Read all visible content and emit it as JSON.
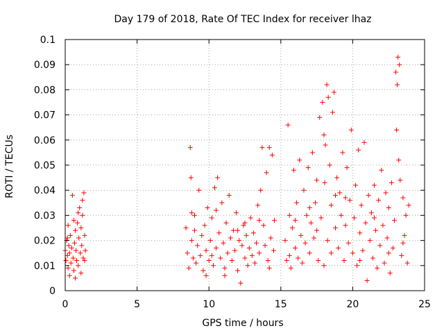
{
  "chart_data": {
    "type": "scatter",
    "title": "Day 179 of 2018, Rate Of TEC Index for receiver lhaz",
    "xlabel": "GPS time / hours",
    "ylabel": "ROTI / TECUs",
    "xlim": [
      0,
      25
    ],
    "ylim": [
      0,
      0.1
    ],
    "x_ticks": [
      0,
      5,
      10,
      15,
      20,
      25
    ],
    "x_tick_labels": [
      "0",
      "5",
      "10",
      "15",
      "20",
      "25"
    ],
    "y_ticks": [
      0,
      0.01,
      0.02,
      0.03,
      0.04,
      0.05,
      0.06,
      0.07,
      0.08,
      0.09,
      0.1
    ],
    "y_tick_labels": [
      "0",
      "0.01",
      "0.02",
      "0.03",
      "0.04",
      "0.05",
      "0.06",
      "0.07",
      "0.08",
      "0.09",
      "0.1"
    ],
    "grid": true,
    "marker": "+",
    "series_color": "#ff0000",
    "series": [
      {
        "name": "ROTI",
        "points": [
          [
            0.0,
            0.016
          ],
          [
            0.05,
            0.012
          ],
          [
            0.1,
            0.02
          ],
          [
            0.15,
            0.014
          ],
          [
            0.2,
            0.009
          ],
          [
            0.25,
            0.018
          ],
          [
            0.3,
            0.015
          ],
          [
            0.35,
            0.022
          ],
          [
            0.4,
            0.011
          ],
          [
            0.45,
            0.017
          ],
          [
            0.5,
            0.038
          ],
          [
            0.55,
            0.013
          ],
          [
            0.6,
            0.008
          ],
          [
            0.65,
            0.019
          ],
          [
            0.7,
            0.024
          ],
          [
            0.75,
            0.016
          ],
          [
            0.8,
            0.012
          ],
          [
            0.85,
            0.027
          ],
          [
            0.9,
            0.01
          ],
          [
            0.95,
            0.021
          ],
          [
            1.0,
            0.033
          ],
          [
            1.05,
            0.015
          ],
          [
            1.1,
            0.025
          ],
          [
            1.15,
            0.018
          ],
          [
            1.2,
            0.03
          ],
          [
            1.25,
            0.013
          ],
          [
            1.3,
            0.039
          ],
          [
            1.35,
            0.022
          ],
          [
            1.4,
            0.016
          ],
          [
            0.3,
            0.006
          ],
          [
            0.7,
            0.005
          ],
          [
            1.1,
            0.007
          ],
          [
            0.2,
            0.026
          ],
          [
            0.9,
            0.031
          ],
          [
            1.2,
            0.036
          ],
          [
            0.6,
            0.028
          ],
          [
            1.35,
            0.012
          ],
          [
            0.15,
            0.021
          ],
          [
            8.4,
            0.025
          ],
          [
            8.5,
            0.015
          ],
          [
            8.6,
            0.009
          ],
          [
            8.7,
            0.057
          ],
          [
            8.75,
            0.045
          ],
          [
            8.8,
            0.02
          ],
          [
            8.9,
            0.013
          ],
          [
            9.0,
            0.03
          ],
          [
            9.1,
            0.011
          ],
          [
            9.2,
            0.018
          ],
          [
            9.3,
            0.04
          ],
          [
            9.4,
            0.014
          ],
          [
            9.5,
            0.022
          ],
          [
            9.6,
            0.008
          ],
          [
            9.7,
            0.026
          ],
          [
            9.8,
            0.016
          ],
          [
            9.9,
            0.033
          ],
          [
            10.0,
            0.012
          ],
          [
            10.1,
            0.02
          ],
          [
            10.2,
            0.029
          ],
          [
            10.3,
            0.01
          ],
          [
            10.4,
            0.041
          ],
          [
            10.5,
            0.017
          ],
          [
            10.6,
            0.045
          ],
          [
            10.7,
            0.023
          ],
          [
            10.8,
            0.013
          ],
          [
            10.9,
            0.035
          ],
          [
            11.0,
            0.019
          ],
          [
            11.1,
            0.009
          ],
          [
            11.2,
            0.027
          ],
          [
            11.3,
            0.015
          ],
          [
            11.4,
            0.038
          ],
          [
            11.5,
            0.021
          ],
          [
            11.6,
            0.012
          ],
          [
            11.7,
            0.024
          ],
          [
            11.8,
            0.016
          ],
          [
            11.9,
            0.031
          ],
          [
            12.0,
            0.008
          ],
          [
            12.1,
            0.02
          ],
          [
            12.2,
            0.003
          ],
          [
            12.3,
            0.018
          ],
          [
            12.4,
            0.026
          ],
          [
            12.5,
            0.013
          ],
          [
            12.6,
            0.022
          ],
          [
            12.7,
            0.01
          ],
          [
            12.8,
            0.017
          ],
          [
            12.9,
            0.029
          ],
          [
            13.0,
            0.014
          ],
          [
            13.1,
            0.023
          ],
          [
            13.2,
            0.011
          ],
          [
            13.3,
            0.019
          ],
          [
            13.4,
            0.034
          ],
          [
            13.5,
            0.015
          ],
          [
            13.6,
            0.04
          ],
          [
            13.7,
            0.057
          ],
          [
            13.8,
            0.026
          ],
          [
            13.9,
            0.018
          ],
          [
            14.0,
            0.047
          ],
          [
            14.1,
            0.012
          ],
          [
            14.2,
            0.057
          ],
          [
            14.3,
            0.021
          ],
          [
            14.4,
            0.054
          ],
          [
            14.5,
            0.016
          ],
          [
            14.55,
            0.028
          ],
          [
            9.0,
            0.024
          ],
          [
            9.8,
            0.006
          ],
          [
            10.5,
            0.032
          ],
          [
            11.1,
            0.006
          ],
          [
            12.5,
            0.027
          ],
          [
            13.5,
            0.028
          ],
          [
            14.2,
            0.009
          ],
          [
            8.8,
            0.031
          ],
          [
            10.2,
            0.014
          ],
          [
            12.0,
            0.024
          ],
          [
            15.3,
            0.02
          ],
          [
            15.4,
            0.012
          ],
          [
            15.5,
            0.066
          ],
          [
            15.6,
            0.03
          ],
          [
            15.7,
            0.009
          ],
          [
            15.8,
            0.025
          ],
          [
            15.9,
            0.048
          ],
          [
            16.0,
            0.017
          ],
          [
            16.1,
            0.035
          ],
          [
            16.2,
            0.013
          ],
          [
            16.3,
            0.052
          ],
          [
            16.4,
            0.022
          ],
          [
            16.5,
            0.011
          ],
          [
            16.6,
            0.04
          ],
          [
            16.7,
            0.019
          ],
          [
            16.8,
            0.03
          ],
          [
            16.9,
            0.049
          ],
          [
            17.0,
            0.015
          ],
          [
            17.1,
            0.027
          ],
          [
            17.2,
            0.055
          ],
          [
            17.3,
            0.021
          ],
          [
            17.4,
            0.035
          ],
          [
            17.5,
            0.044
          ],
          [
            17.6,
            0.012
          ],
          [
            17.7,
            0.069
          ],
          [
            17.8,
            0.029
          ],
          [
            17.9,
            0.075
          ],
          [
            18.0,
            0.062
          ],
          [
            18.05,
            0.043
          ],
          [
            18.1,
            0.058
          ],
          [
            18.2,
            0.082
          ],
          [
            18.25,
            0.02
          ],
          [
            18.3,
            0.077
          ],
          [
            18.4,
            0.05
          ],
          [
            18.5,
            0.034
          ],
          [
            18.6,
            0.071
          ],
          [
            18.7,
            0.079
          ],
          [
            18.8,
            0.025
          ],
          [
            18.9,
            0.045
          ],
          [
            19.0,
            0.017
          ],
          [
            19.1,
            0.039
          ],
          [
            19.2,
            0.03
          ],
          [
            19.3,
            0.055
          ],
          [
            19.4,
            0.012
          ],
          [
            19.5,
            0.026
          ],
          [
            19.6,
            0.049
          ],
          [
            19.7,
            0.019
          ],
          [
            19.8,
            0.036
          ],
          [
            19.9,
            0.064
          ],
          [
            20.0,
            0.015
          ],
          [
            20.1,
            0.029
          ],
          [
            20.2,
            0.042
          ],
          [
            20.3,
            0.01
          ],
          [
            20.4,
            0.056
          ],
          [
            20.5,
            0.023
          ],
          [
            20.6,
            0.034
          ],
          [
            20.7,
            0.016
          ],
          [
            20.8,
            0.059
          ],
          [
            20.9,
            0.027
          ],
          [
            21.0,
            0.004
          ],
          [
            21.1,
            0.038
          ],
          [
            21.2,
            0.02
          ],
          [
            21.3,
            0.031
          ],
          [
            21.4,
            0.013
          ],
          [
            21.5,
            0.042
          ],
          [
            21.6,
            0.024
          ],
          [
            21.7,
            0.009
          ],
          [
            21.8,
            0.036
          ],
          [
            21.9,
            0.018
          ],
          [
            22.0,
            0.048
          ],
          [
            22.1,
            0.026
          ],
          [
            22.2,
            0.011
          ],
          [
            22.3,
            0.039
          ],
          [
            22.4,
            0.021
          ],
          [
            22.5,
            0.033
          ],
          [
            22.6,
            0.007
          ],
          [
            22.7,
            0.043
          ],
          [
            22.8,
            0.017
          ],
          [
            22.9,
            0.028
          ],
          [
            23.0,
            0.087
          ],
          [
            23.05,
            0.064
          ],
          [
            23.1,
            0.082
          ],
          [
            23.15,
            0.093
          ],
          [
            23.2,
            0.052
          ],
          [
            23.25,
            0.09
          ],
          [
            23.3,
            0.044
          ],
          [
            23.4,
            0.014
          ],
          [
            23.5,
            0.037
          ],
          [
            23.6,
            0.022
          ],
          [
            23.7,
            0.03
          ],
          [
            23.8,
            0.011
          ],
          [
            23.9,
            0.034
          ],
          [
            16.0,
            0.028
          ],
          [
            17.0,
            0.033
          ],
          [
            18.0,
            0.01
          ],
          [
            18.5,
            0.015
          ],
          [
            19.5,
            0.037
          ],
          [
            20.5,
            0.012
          ],
          [
            21.5,
            0.029
          ],
          [
            22.5,
            0.015
          ],
          [
            23.5,
            0.019
          ],
          [
            17.5,
            0.024
          ],
          [
            18.8,
            0.038
          ],
          [
            15.6,
            0.014
          ]
        ]
      }
    ]
  }
}
